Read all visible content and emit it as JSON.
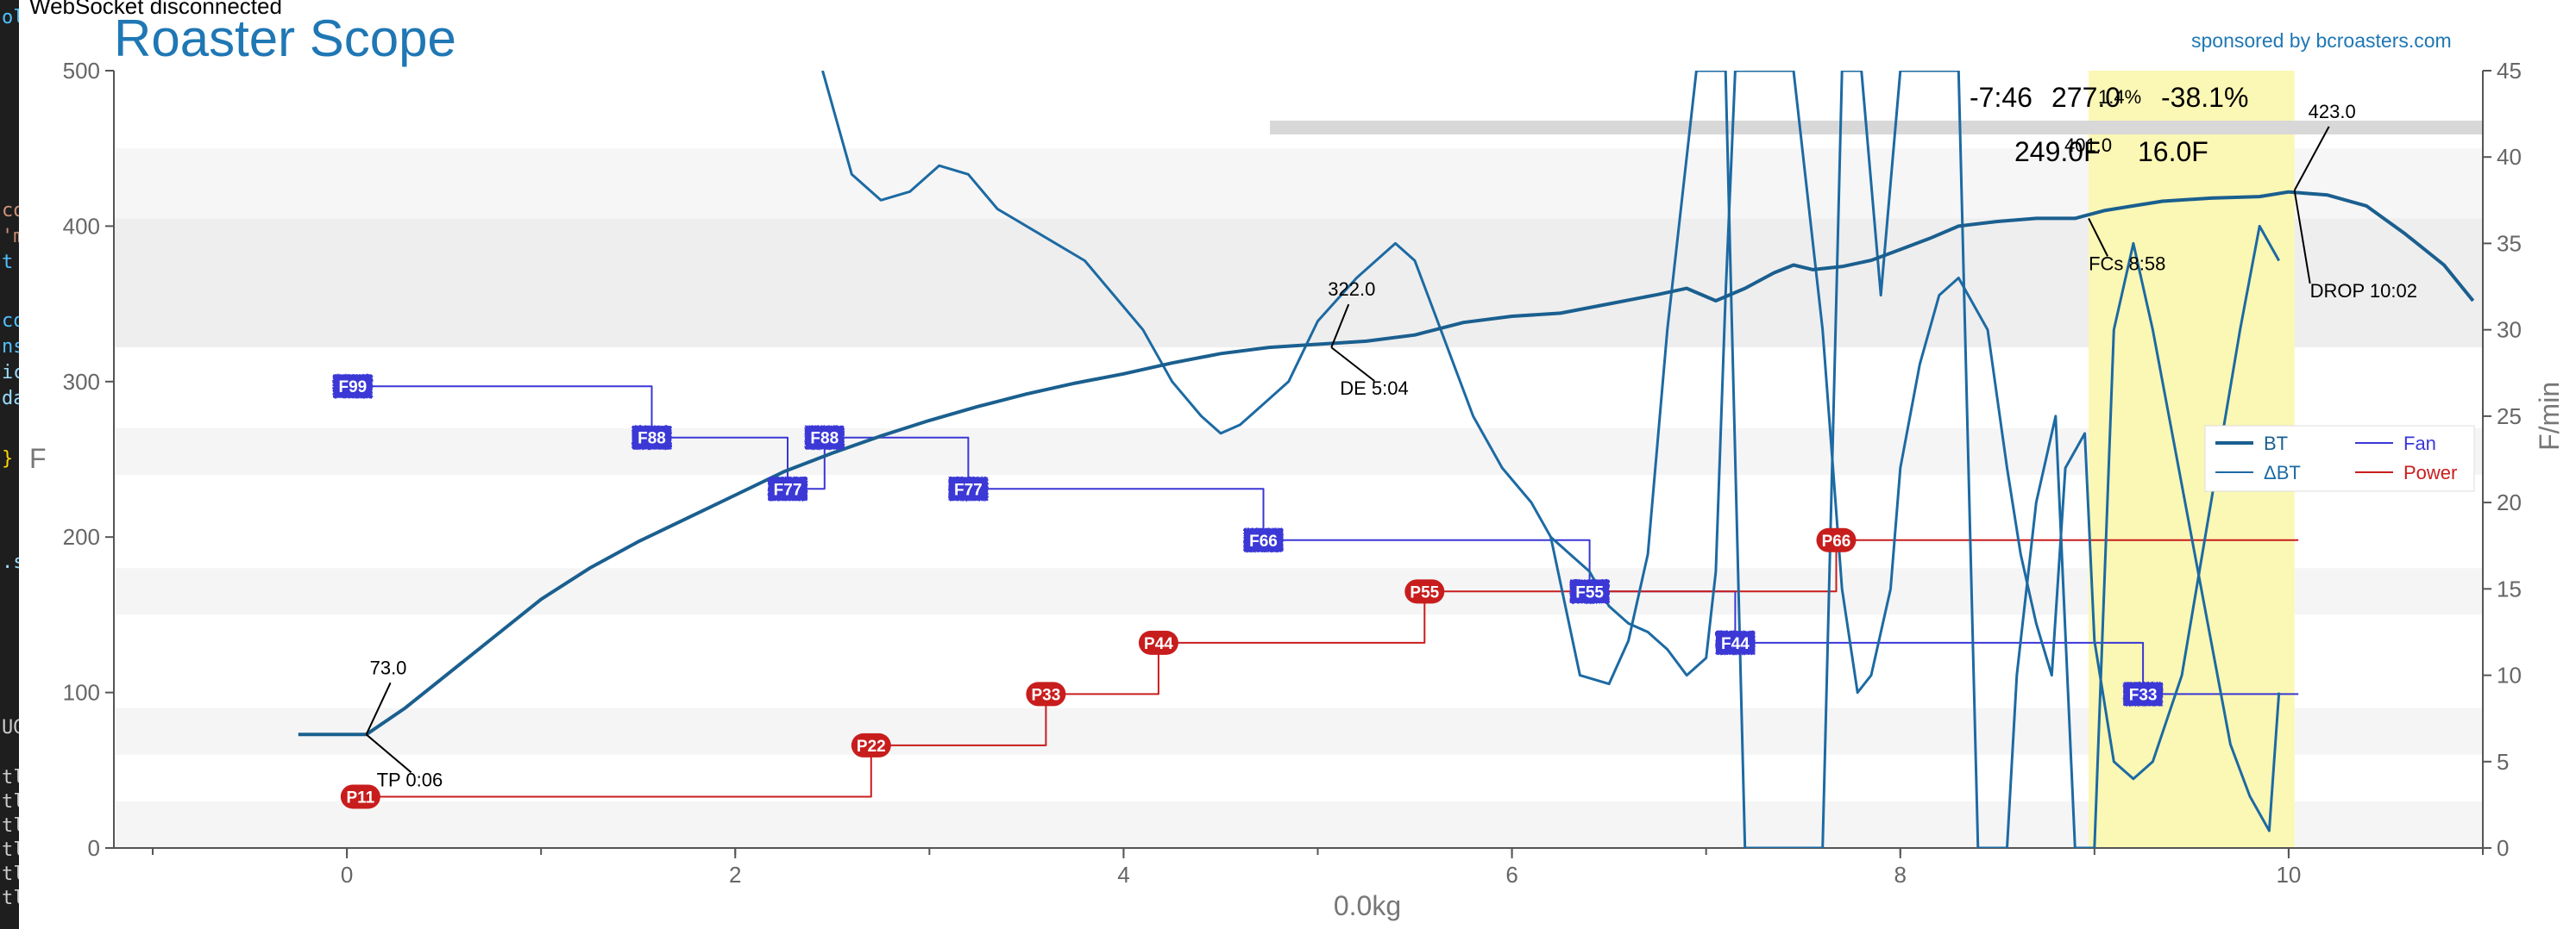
{
  "app": {
    "status": "WebSocket disconnected",
    "title": "Roaster Scope",
    "sponsor": "sponsored by bcroasters.com"
  },
  "colors": {
    "bt": "#1a5f8f",
    "dbt": "#1c6aa3",
    "fan": "#3a37d6",
    "power": "#c81d1d",
    "fc_band": "#fbf7b4",
    "title": "#1f77b4"
  },
  "terminal_fragments": [
    {
      "t": "ol",
      "c": "#4fc1ff"
    },
    {
      "t": "co",
      "c": "#ce9178"
    },
    {
      "t": "'m",
      "c": "#ce9178"
    },
    {
      "t": "t",
      "c": "#4fc1ff"
    },
    {
      "t": "co",
      "c": "#4fc1ff"
    },
    {
      "t": "ns",
      "c": "#4fc1ff"
    },
    {
      "t": "ic",
      "c": "#9cdcfe"
    },
    {
      "t": "da",
      "c": "#9cdcfe"
    },
    {
      "t": "}",
      "c": "#ffd700"
    },
    {
      "t": ".s",
      "c": "#9cdcfe"
    },
    {
      "t": "UG",
      "c": "#cccccc"
    },
    {
      "t": "tl",
      "c": "#cccccc"
    },
    {
      "t": "tl",
      "c": "#cccccc"
    },
    {
      "t": "tl",
      "c": "#cccccc"
    },
    {
      "t": "tl",
      "c": "#cccccc"
    },
    {
      "t": "tl",
      "c": "#cccccc"
    },
    {
      "t": "tl",
      "c": "#cccccc"
    }
  ],
  "chart_data": {
    "type": "line",
    "xlabel": "0.0kg",
    "ylabel": "F",
    "y2label": "F/min",
    "xlim": [
      -1.2,
      11.0
    ],
    "ylim": [
      0,
      500
    ],
    "y2lim": [
      0,
      45
    ],
    "x_ticks": [
      0,
      2,
      4,
      6,
      8,
      10
    ],
    "y_ticks": [
      0,
      100,
      200,
      300,
      400,
      500
    ],
    "y2_ticks": [
      0,
      5,
      10,
      15,
      20,
      25,
      30,
      35,
      40,
      45
    ],
    "legend": {
      "placement": "right",
      "entries": [
        {
          "label": "BT",
          "series": "bt"
        },
        {
          "label": "Fan",
          "series": "fan"
        },
        {
          "label": "ΔBT",
          "series": "dbt"
        },
        {
          "label": "Power",
          "series": "power"
        }
      ]
    },
    "readouts": {
      "time": "-7:46",
      "temp_overlap": "277.0",
      "temp_overlap2": "1.4%",
      "percent": "-38.1%",
      "temp2": "249.0F",
      "temp2_overlap": "401.0",
      "rate": "16.0F"
    },
    "fc_band": {
      "start": 8.97,
      "end": 10.03
    },
    "series": [
      {
        "name": "BT",
        "axis": "left",
        "x": [
          -0.25,
          0.1,
          0.3,
          0.5,
          0.75,
          1.0,
          1.25,
          1.5,
          1.75,
          2.0,
          2.25,
          2.5,
          2.75,
          3.0,
          3.25,
          3.5,
          3.75,
          4.0,
          4.25,
          4.5,
          4.75,
          5.0,
          5.25,
          5.5,
          5.75,
          6.0,
          6.25,
          6.5,
          6.75,
          6.9,
          7.05,
          7.2,
          7.35,
          7.45,
          7.55,
          7.7,
          7.85,
          8.0,
          8.15,
          8.3,
          8.5,
          8.7,
          8.9,
          9.05,
          9.2,
          9.35,
          9.6,
          9.85,
          10.0,
          10.2,
          10.4,
          10.6,
          10.8,
          10.95
        ],
        "values": [
          73,
          73,
          90,
          110,
          135,
          160,
          180,
          197,
          212,
          227,
          242,
          254,
          265,
          275,
          284,
          292,
          299,
          305,
          312,
          318,
          322,
          324,
          326,
          330,
          338,
          342,
          344,
          350,
          356,
          360,
          352,
          360,
          370,
          375,
          372,
          374,
          378,
          385,
          392,
          400,
          403,
          405,
          405,
          410,
          413,
          416,
          418,
          419,
          422,
          420,
          413,
          395,
          375,
          352
        ]
      },
      {
        "name": "ΔBT",
        "axis": "right",
        "x": [
          2.45,
          2.6,
          2.75,
          2.9,
          3.05,
          3.2,
          3.35,
          3.5,
          3.65,
          3.8,
          3.95,
          4.1,
          4.25,
          4.4,
          4.5,
          4.6,
          4.7,
          4.85,
          5.0,
          5.2,
          5.4,
          5.5,
          5.6,
          5.7,
          5.8,
          5.95,
          6.1,
          6.2,
          6.3,
          6.4,
          6.5,
          6.6,
          6.7,
          6.75,
          6.8,
          6.9,
          7.0,
          7.05,
          7.1,
          7.15,
          7.3,
          7.45,
          7.6,
          7.7,
          7.78,
          7.85,
          7.95,
          8.0,
          8.1,
          8.2,
          8.3,
          8.45,
          8.55,
          8.62,
          8.7,
          8.78,
          8.85,
          8.95,
          9.0,
          9.1,
          9.2,
          9.3,
          9.45,
          9.6,
          9.75,
          9.85,
          9.95
        ],
        "values": [
          45,
          39,
          37.5,
          38,
          39.5,
          39,
          37,
          36,
          35,
          34,
          32,
          30,
          27,
          25,
          24,
          24.5,
          25.5,
          27,
          30.5,
          33,
          35,
          34,
          31,
          28,
          25,
          22,
          20,
          18,
          17,
          16,
          14,
          13,
          12.5,
          12,
          11.5,
          10,
          11,
          16,
          32,
          45,
          45,
          45,
          30,
          15,
          9,
          10,
          15,
          22,
          28,
          32,
          33,
          30,
          22,
          17,
          13,
          10,
          22,
          24,
          12,
          5,
          4,
          5,
          10,
          20,
          30,
          36,
          34
        ],
        "clip": true
      },
      {
        "name": "ΔBT (late)",
        "axis": "right",
        "x": [
          6.2,
          6.35,
          6.5,
          6.6,
          6.7,
          6.8,
          6.95,
          7.1,
          7.2,
          7.3,
          7.4,
          7.5,
          7.6,
          7.7,
          7.8,
          7.9,
          8.0,
          8.1,
          8.2,
          8.3,
          8.4,
          8.5,
          8.55,
          8.6,
          8.7,
          8.8,
          8.9,
          9.0,
          9.1,
          9.2,
          9.3,
          9.4,
          9.5,
          9.6,
          9.7,
          9.8,
          9.9,
          9.95
        ],
        "values": [
          18,
          10,
          9.5,
          12,
          17,
          30,
          45,
          45,
          0,
          0,
          0,
          0,
          0,
          45,
          45,
          32,
          45,
          45,
          45,
          45,
          0,
          0,
          0,
          10,
          20,
          25,
          0,
          0,
          30,
          35,
          30,
          24,
          18,
          12,
          6,
          3,
          1,
          9
        ],
        "clip": true
      },
      {
        "name": "Fan",
        "axis": "left",
        "x": [
          0.0,
          1.57,
          1.57,
          2.27,
          2.27,
          2.46,
          2.46,
          3.2,
          3.2,
          4.72,
          4.72,
          6.4,
          6.4,
          7.15,
          7.15,
          9.25,
          9.25,
          10.05
        ],
        "values": [
          297,
          297,
          264,
          264,
          231,
          231,
          264,
          264,
          231,
          231,
          198,
          198,
          165,
          165,
          132,
          132,
          99,
          99
        ]
      },
      {
        "name": "Power",
        "axis": "left",
        "x": [
          0.07,
          2.7,
          2.7,
          3.6,
          3.6,
          4.18,
          4.18,
          5.55,
          5.55,
          7.67,
          7.67,
          10.05
        ],
        "values": [
          33,
          33,
          66,
          66,
          99,
          99,
          132,
          132,
          165,
          165,
          198,
          198
        ]
      }
    ],
    "fan_markers": [
      {
        "x": 0.03,
        "y": 297,
        "label": "F99"
      },
      {
        "x": 1.57,
        "y": 264,
        "label": "F88"
      },
      {
        "x": 2.27,
        "y": 231,
        "label": "F77"
      },
      {
        "x": 2.46,
        "y": 264,
        "label": "F88"
      },
      {
        "x": 3.2,
        "y": 231,
        "label": "F77"
      },
      {
        "x": 4.72,
        "y": 198,
        "label": "F66"
      },
      {
        "x": 6.4,
        "y": 165,
        "label": "F55"
      },
      {
        "x": 7.15,
        "y": 132,
        "label": "F44"
      },
      {
        "x": 9.25,
        "y": 99,
        "label": "F33"
      }
    ],
    "power_markers": [
      {
        "x": 0.07,
        "y": 33,
        "label": "P11"
      },
      {
        "x": 2.7,
        "y": 66,
        "label": "P22"
      },
      {
        "x": 3.6,
        "y": 99,
        "label": "P33"
      },
      {
        "x": 4.18,
        "y": 132,
        "label": "P44"
      },
      {
        "x": 5.55,
        "y": 165,
        "label": "P55"
      },
      {
        "x": 7.67,
        "y": 198,
        "label": "P66"
      }
    ],
    "annotations": [
      {
        "x": 0.1,
        "y": 73,
        "value": "73.0",
        "event": "TP 0:06"
      },
      {
        "x": 5.07,
        "y": 322,
        "value": "322.0",
        "event": "DE 5:04"
      },
      {
        "x": 8.97,
        "y": 405,
        "value": "",
        "event": "FCs 8:58"
      },
      {
        "x": 10.03,
        "y": 423,
        "value": "423.0",
        "event": "DROP 10:02"
      }
    ]
  }
}
